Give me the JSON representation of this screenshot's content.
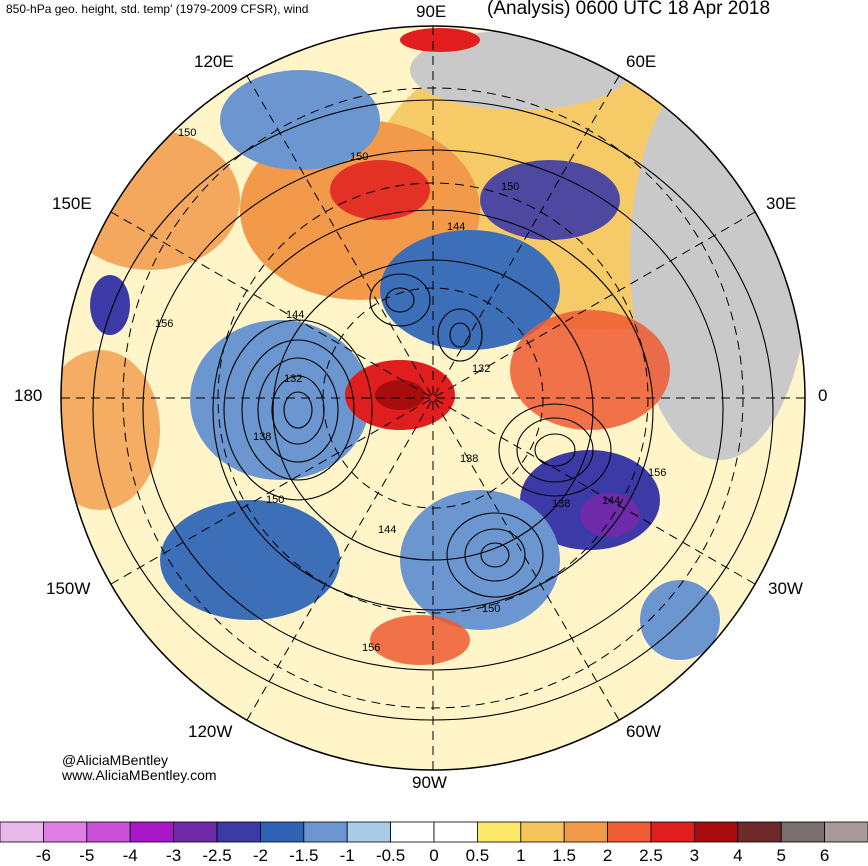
{
  "header": {
    "left": "850-hPa geo. height, std. temp' (1979-2009 CFSR), wind",
    "right": "(Analysis) 0600 UTC 18 Apr 2018"
  },
  "credit": {
    "handle": "@AliciaMBentley",
    "url": "www.AliciaMBentley.com"
  },
  "longitude_labels": {
    "e90": "90E",
    "e60": "60E",
    "e30": "30E",
    "zero": "0",
    "w30": "30W",
    "w60": "60W",
    "w90": "90W",
    "w120": "120W",
    "w150": "150W",
    "e180": "180",
    "e150": "150E",
    "e120": "120E"
  },
  "contour_labels": [
    "132",
    "132",
    "138",
    "138",
    "138",
    "144",
    "144",
    "144",
    "144",
    "150",
    "150",
    "150",
    "150",
    "150",
    "156",
    "156",
    "156"
  ],
  "colorbar": {
    "ticks": [
      "-6",
      "-5",
      "-4",
      "-3",
      "-2.5",
      "-2",
      "-1.5",
      "-1",
      "-0.5",
      "0",
      "0.5",
      "1",
      "1.5",
      "2",
      "2.5",
      "3",
      "4",
      "5",
      "6"
    ],
    "colors": [
      "#e8b8ea",
      "#e07ee6",
      "#cc4fd8",
      "#a818c8",
      "#6e2aa8",
      "#3c3aa6",
      "#2f62b4",
      "#6b96d0",
      "#a8cce8",
      "#ffffff",
      "#ffffff",
      "#fce96a",
      "#f5c55c",
      "#f29a4a",
      "#ef5b33",
      "#e01e1e",
      "#a80c0c",
      "#6e2a2a",
      "#7a6f6f",
      "#a89a9a"
    ]
  },
  "colors": {
    "land_gray": "#c9c9c9",
    "contour": "#000000"
  }
}
